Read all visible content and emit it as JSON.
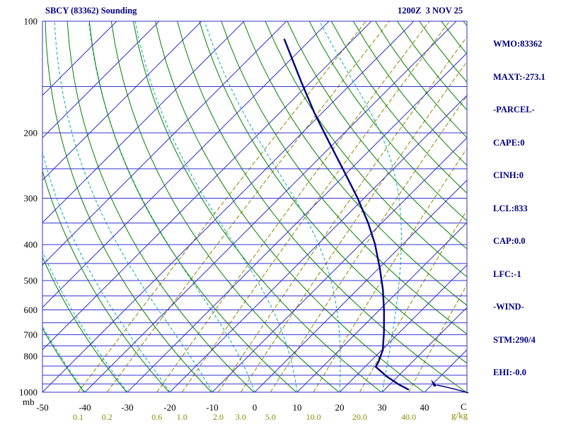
{
  "header": {
    "title": "SBCY (83362) Sounding",
    "datetime": "1200Z  3 NOV 25"
  },
  "panel": {
    "lines": [
      "WMO:83362",
      "MAXT:-273.1",
      "-PARCEL-",
      "CAPE:0",
      "CINH:0",
      "LCL:833",
      "CAP:0.0",
      "LFC:-1",
      "-WIND-",
      "STM:290/4",
      "EHI:-0.0"
    ]
  },
  "axes": {
    "pressure_unit": "mb",
    "temp_unit": "C",
    "mixing_unit": "g/kg"
  },
  "colors": {
    "grid_blue": "#3333cc",
    "adiabat_green": "#008000",
    "moist_cyan": "#00aaaa",
    "mixing_olive": "#8a8a00",
    "trace_navy": "#000080",
    "tick_black": "#000000",
    "background": "#ffffff"
  },
  "chart_data": {
    "type": "line",
    "diagram": "skew-t-log-p-sounding",
    "title": "SBCY (83362) Sounding",
    "valid_time": "1200Z 3 NOV 25",
    "station": "SBCY (83362)",
    "pressure_axis": {
      "unit": "mb",
      "scale": "log",
      "range": [
        100,
        1000
      ],
      "ticks": [
        100,
        200,
        300,
        400,
        500,
        600,
        700,
        800,
        1000
      ],
      "isobars_mb": [
        100,
        150,
        200,
        250,
        300,
        350,
        400,
        450,
        500,
        550,
        600,
        650,
        700,
        750,
        800,
        850,
        900,
        950,
        1000
      ]
    },
    "temp_axis": {
      "unit": "C",
      "ticks": [
        -50,
        -40,
        -30,
        -20,
        -10,
        0,
        10,
        20,
        30,
        40
      ],
      "isotherm_step_c": 10,
      "isotherm_range_c": [
        -120,
        50
      ],
      "skew_deg": 45
    },
    "mixing_ratio_lines_g_kg": [
      0.1,
      0.2,
      0.6,
      1.0,
      2.0,
      3.0,
      5.0,
      10.0,
      20.0,
      40.0
    ],
    "dry_adiabats_theta_k": [
      233,
      243,
      253,
      263,
      273,
      283,
      293,
      303,
      313,
      323,
      333,
      343,
      353,
      363,
      373,
      383,
      393,
      403,
      413,
      423,
      433,
      443,
      453
    ],
    "moist_adiabats_thetaw_c": [
      -40,
      -30,
      -20,
      -10,
      0,
      10,
      20,
      30
    ],
    "sounding": {
      "series": [
        {
          "name": "temperature",
          "color_key": "trace_navy",
          "points": [
            [
              983,
              35.5
            ],
            [
              952,
              32.0
            ],
            [
              908,
              27.5
            ],
            [
              854,
              22.5
            ],
            [
              828,
              22.0
            ],
            [
              769,
              20.2
            ],
            [
              689,
              16.3
            ],
            [
              604,
              11.3
            ],
            [
              529,
              6.0
            ],
            [
              464,
              0.3
            ],
            [
              398,
              -6.7
            ],
            [
              349,
              -13.3
            ],
            [
              299,
              -21.7
            ],
            [
              251,
              -31.7
            ],
            [
              211,
              -41.7
            ],
            [
              177,
              -51.7
            ],
            [
              145,
              -62.5
            ],
            [
              124,
              -70.8
            ],
            [
              112,
              -76.2
            ]
          ]
        }
      ]
    },
    "surface_wind_marker": {
      "type": "wind-barb",
      "location": "bottom-right near 1000 mb"
    }
  }
}
